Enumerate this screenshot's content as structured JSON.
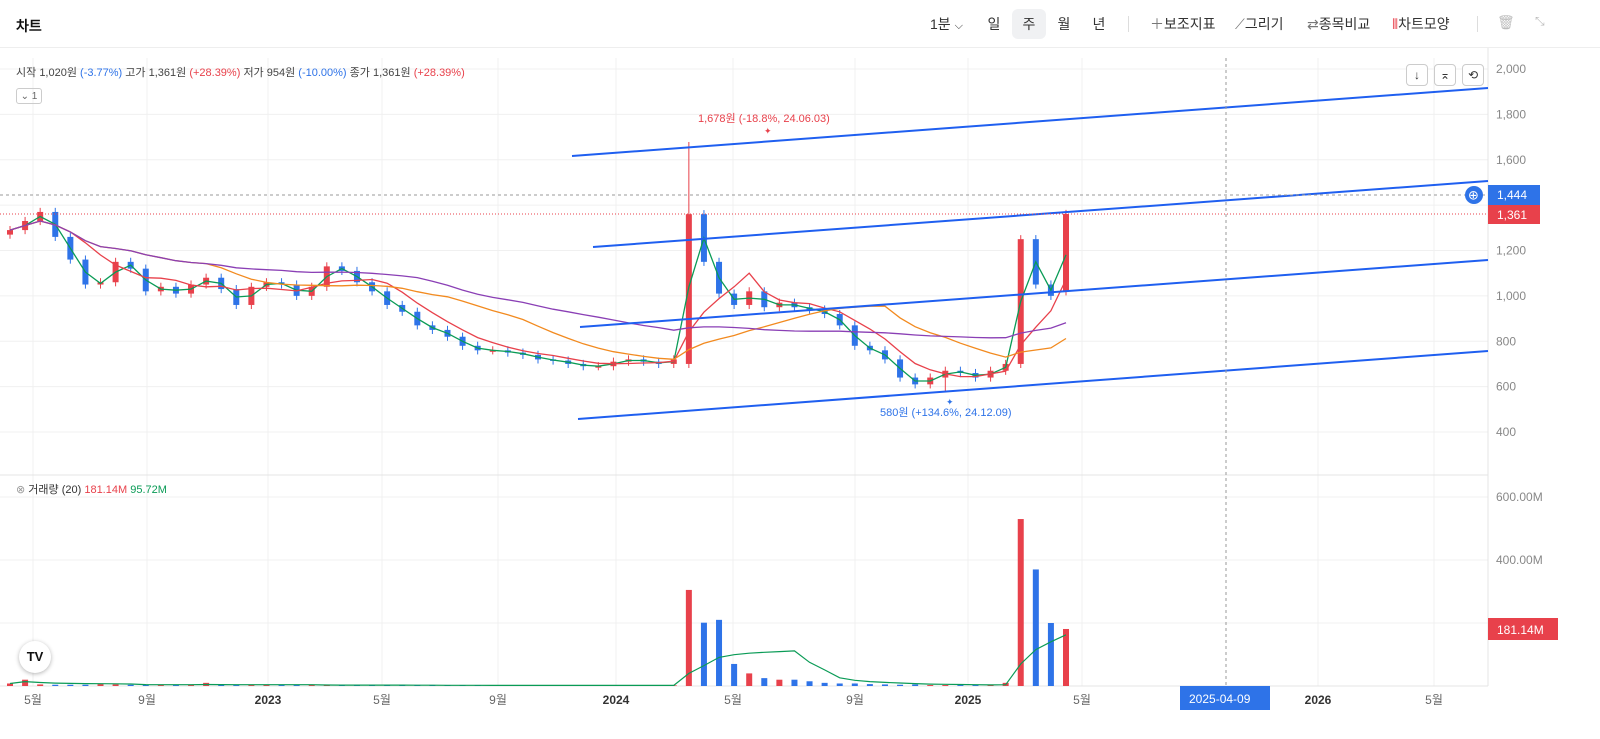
{
  "header": {
    "title": "차트",
    "interval": "1분",
    "periods": [
      "일",
      "주",
      "월",
      "년"
    ],
    "active_period": "주",
    "tools": [
      {
        "icon": "plus-icon",
        "label": "보조지표"
      },
      {
        "icon": "pencil-icon",
        "label": "그리기"
      },
      {
        "icon": "compare-icon",
        "label": "종목비교"
      },
      {
        "icon": "candle-icon",
        "label": "차트모양"
      }
    ]
  },
  "ohlc": {
    "open_label": "시작",
    "open": "1,020원",
    "open_change": "(-3.77%)",
    "high_label": "고가",
    "high": "1,361원",
    "high_change": "(+28.39%)",
    "low_label": "저가",
    "low": "954원",
    "low_change": "(-10.00%)",
    "close_label": "종가",
    "close": "1,361원",
    "close_change": "(+28.39%)"
  },
  "collapse_label": "1",
  "volume_legend": {
    "name": "거래량 (20)",
    "v1": "181.14M",
    "v2": "95.72M"
  },
  "tv_logo": "TV",
  "colors": {
    "up": "#e8414b",
    "down": "#2e73e8",
    "ma5": "#0a9b56",
    "ma20": "#e8414b",
    "ma60": "#f28a1f",
    "ma120": "#8a3fb5",
    "trend": "#1f5ff0",
    "grid": "#f0f0f0"
  },
  "chart_data": {
    "type": "candlestick",
    "price_axis": {
      "ticks": [
        400,
        600,
        800,
        1000,
        1200,
        1400,
        1600,
        1800,
        2000
      ],
      "labels": [
        "400",
        "600",
        "800",
        "1,000",
        "1,200",
        "1,400",
        "1,600",
        "1,800",
        "2,000"
      ],
      "ylim": [
        400,
        2000
      ]
    },
    "volume_axis": {
      "ticks": [
        400,
        600
      ],
      "labels": [
        "400.00M",
        "600.00M"
      ],
      "unit": "M"
    },
    "time_axis": {
      "labels": [
        "5월",
        "9월",
        "2023",
        "5월",
        "9월",
        "2024",
        "5월",
        "9월",
        "2025",
        "5월",
        "2026",
        "5월"
      ]
    },
    "crosshair": {
      "price_label": "1,444",
      "time_label": "2025-04-09"
    },
    "last_price_label": "1,361",
    "last_volume_label": "181.14M",
    "annotations": {
      "high": {
        "text": "1,678원 (-18.8%, 24.06.03)",
        "value": 1678
      },
      "low": {
        "text": "580원 (+134.6%, 24.12.09)",
        "value": 580
      }
    },
    "price_series": [
      1290,
      1330,
      1370,
      1260,
      1160,
      1050,
      1060,
      1150,
      1120,
      1020,
      1040,
      1010,
      1050,
      1080,
      1030,
      960,
      1040,
      1060,
      1050,
      1000,
      1040,
      1130,
      1110,
      1060,
      1020,
      960,
      930,
      870,
      850,
      820,
      780,
      760,
      760,
      750,
      740,
      720,
      715,
      700,
      690,
      690,
      710,
      720,
      710,
      700,
      720,
      1360,
      1150,
      1010,
      960,
      1020,
      950,
      970,
      950,
      940,
      920,
      870,
      780,
      760,
      720,
      640,
      610,
      640,
      670,
      660,
      640,
      670,
      700,
      1250,
      1050,
      1000,
      1361
    ],
    "volume_series": [
      8,
      20,
      5,
      4,
      4,
      4,
      6,
      5,
      4,
      4,
      3,
      3,
      3,
      10,
      4,
      3,
      3,
      3,
      3,
      3,
      3,
      3,
      3,
      3,
      3,
      2,
      2,
      2,
      2,
      2,
      2,
      2,
      2,
      2,
      2,
      2,
      2,
      2,
      2,
      2,
      2,
      2,
      2,
      2,
      2,
      305,
      201,
      210,
      70,
      40,
      25,
      20,
      20,
      15,
      10,
      8,
      8,
      6,
      5,
      4,
      5,
      3,
      3,
      3,
      3,
      3,
      10,
      530,
      370,
      200,
      181
    ]
  }
}
